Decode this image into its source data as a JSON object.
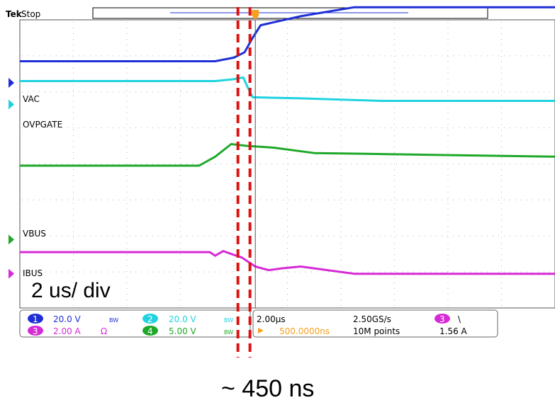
{
  "header": {
    "brand": "Tek",
    "status": "Stop"
  },
  "channel_labels": [
    "VAC",
    "OVPGATE",
    "VBUS",
    "IBUS"
  ],
  "timebase_label": "2 us/ div",
  "delay_label": "~ 450 ns",
  "readout": {
    "ch1": {
      "num": "1",
      "scale": "20.0 V",
      "bw": "BW"
    },
    "ch2": {
      "num": "2",
      "scale": "20.0 V",
      "bw": "BW"
    },
    "ch3": {
      "num": "3",
      "scale": "2.00 A",
      "unit": "Ω"
    },
    "ch4": {
      "num": "4",
      "scale": "5.00 V",
      "bw": "BW"
    },
    "horizontal": "2.00μs",
    "sample_rate": "2.50GS/s",
    "position": "500.0000ns",
    "record_length": "10M points",
    "trigger_channel": "3",
    "trigger_slope": "\\",
    "trigger_level": "1.56 A"
  },
  "colors": {
    "ch1": "#1f2fd6",
    "ch2": "#20d3df",
    "ch3": "#d62ad6",
    "ch4": "#1fa82a",
    "grid": "#b0b0b0",
    "marker": "#e01010",
    "trigger": "#f5a020"
  },
  "chart_data": {
    "type": "line",
    "x_unit": "us",
    "xlim": [
      -8.5,
      11.5
    ],
    "ylim": [
      -4,
      4
    ],
    "y_unit": "div",
    "grid": true,
    "series": [
      {
        "name": "VAC",
        "color": "#1f2fd6",
        "x": [
          -8.5,
          -1.2,
          -0.5,
          -0.1,
          0.2,
          0.5,
          2.0,
          4.0,
          11.5
        ],
        "y": [
          2.85,
          2.85,
          2.95,
          3.1,
          3.5,
          3.85,
          4.1,
          4.35,
          4.35
        ]
      },
      {
        "name": "OVPGATE",
        "color": "#20d3df",
        "x": [
          -8.5,
          -1.2,
          -0.5,
          -0.15,
          0.0,
          0.2,
          2.0,
          5.0,
          11.5
        ],
        "y": [
          2.3,
          2.3,
          2.35,
          2.4,
          2.15,
          1.85,
          1.82,
          1.75,
          1.75
        ]
      },
      {
        "name": "VBUS",
        "color": "#1fa82a",
        "x": [
          -8.5,
          -1.8,
          -1.2,
          -0.6,
          0.0,
          1.0,
          2.5,
          11.5
        ],
        "y": [
          -0.05,
          -0.05,
          0.2,
          0.55,
          0.5,
          0.45,
          0.3,
          0.2
        ]
      },
      {
        "name": "IBUS",
        "color": "#d62ad6",
        "x": [
          -8.5,
          -1.4,
          -1.2,
          -0.9,
          -0.6,
          -0.2,
          0.3,
          0.8,
          1.3,
          2.0,
          3.0,
          4.0,
          11.5
        ],
        "y": [
          -2.45,
          -2.45,
          -2.55,
          -2.42,
          -2.5,
          -2.6,
          -2.85,
          -2.95,
          -2.9,
          -2.85,
          -2.95,
          -3.05,
          -3.05
        ]
      }
    ],
    "markers_x": [
      -0.35,
      0.1
    ],
    "trigger_x": 0.3
  }
}
